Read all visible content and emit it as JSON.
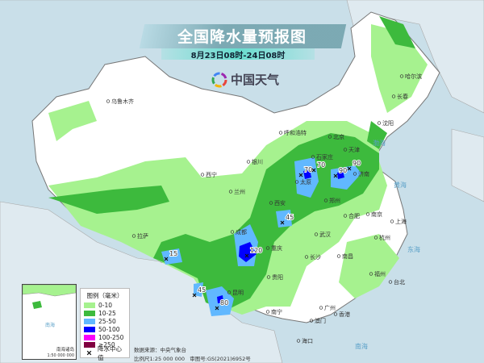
{
  "header": {
    "title": "全国降水量预报图",
    "subtitle": "8月23日08时-24日08时",
    "brand": "中国天气"
  },
  "legend": {
    "title": "图例（毫米）",
    "items": [
      {
        "label": "0-10",
        "color": "#a6f28f"
      },
      {
        "label": "10-25",
        "color": "#3dba3d"
      },
      {
        "label": "25-50",
        "color": "#61b8ff"
      },
      {
        "label": "50-100",
        "color": "#0000ff"
      },
      {
        "label": "100-250",
        "color": "#fa00fa"
      },
      {
        "label": "≥250",
        "color": "#800040"
      }
    ],
    "center_marker": "降水中心值"
  },
  "inset": {
    "name": "南海诸岛",
    "scale": "1:50 000 000",
    "sea": "南海"
  },
  "footer": {
    "source": "数据来源：中央气象台",
    "scale": "比例尺1:25 000 000",
    "approval": "审图号:GS(2021)6952号"
  },
  "cities": [
    "乌鲁木齐",
    "哈尔滨",
    "长春",
    "沈阳",
    "呼和浩特",
    "北京",
    "天津",
    "石家庄",
    "太原",
    "济南",
    "银川",
    "西宁",
    "兰州",
    "郑州",
    "西安",
    "合肥",
    "南京",
    "上海",
    "武汉",
    "杭州",
    "成都",
    "重庆",
    "长沙",
    "南昌",
    "拉萨",
    "贵阳",
    "福州",
    "台北",
    "昆明",
    "南宁",
    "广州",
    "香港",
    "澳门",
    "海口"
  ],
  "seas": [
    "渤海",
    "黄海",
    "东海",
    "南海"
  ],
  "rain_centers": [
    "70",
    "70",
    "90",
    "90",
    "45",
    "120",
    "15",
    "45",
    "80"
  ]
}
